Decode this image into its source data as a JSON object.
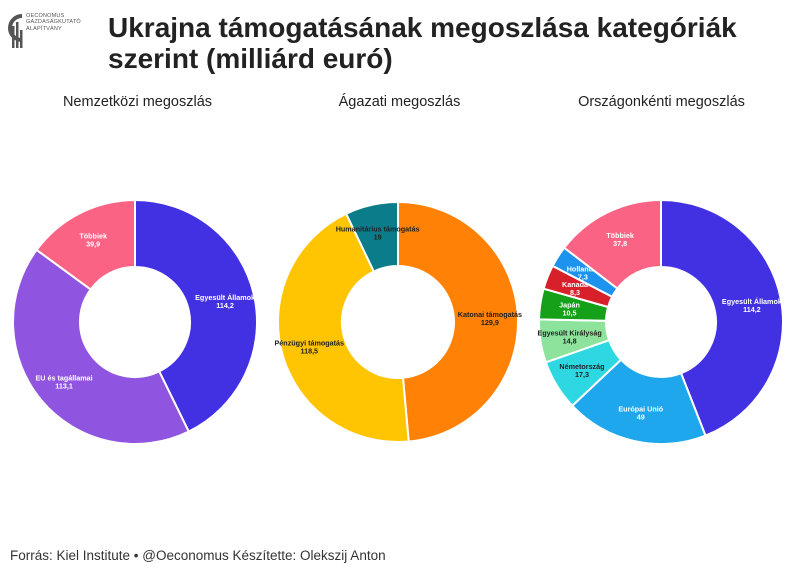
{
  "org": {
    "logo_lines": [
      "OECONOMUS",
      "GAZDASÁGKUTATÓ",
      "ALAPÍTVÁNY"
    ]
  },
  "title": "Ukrajna támogatásának megoszlása kategóriák szerint (milliárd euró)",
  "source": "Forrás: Kiel Institute • @Oeconomus Készítette: Olekszij Anton",
  "chart_data": [
    {
      "type": "pie",
      "title": "Nemzetközi megoszlás",
      "categories": [
        "Egyesült Államok",
        "EU és tagállamai",
        "Többiek"
      ],
      "values": [
        114.2,
        113.1,
        39.9
      ],
      "labels": [
        "114,2",
        "113,1",
        "39,9"
      ],
      "colors": [
        "#4230e3",
        "#9055e0",
        "#fb6385"
      ],
      "label_dark": [
        false,
        false,
        false
      ]
    },
    {
      "type": "pie",
      "title": "Ágazati megoszlás",
      "categories": [
        "Katonai támogatás",
        "Pénzügyi támogatás",
        "Humanitárius támogatás"
      ],
      "values": [
        129.9,
        118.5,
        19
      ],
      "labels": [
        "129,9",
        "118,5",
        "19"
      ],
      "colors": [
        "#ff8206",
        "#ffc503",
        "#0b7d8a"
      ],
      "label_dark": [
        true,
        true,
        true
      ]
    },
    {
      "type": "pie",
      "title": "Országonkénti megoszlás",
      "categories": [
        "Egyesült Államok",
        "Európai Unió",
        "Németország",
        "Egyesült Királyság",
        "Japán",
        "Kanada",
        "Hollandia",
        "Többiek"
      ],
      "values": [
        114.2,
        49,
        17.3,
        14.8,
        10.5,
        8.3,
        7.3,
        37.8
      ],
      "labels": [
        "114,2",
        "49",
        "17,3",
        "14,8",
        "10,5",
        "8,3",
        "7,3",
        "37,8"
      ],
      "colors": [
        "#4230e3",
        "#1ea7ec",
        "#2dd8e3",
        "#8de39b",
        "#15a019",
        "#d8202a",
        "#7b0c10",
        "#1e93ee",
        "#fb6385"
      ],
      "color_map": {
        "Egyesült Államok": "#4230e3",
        "Európai Unió": "#1ea7ec",
        "Németország": "#2dd8e3",
        "Egyesült Királyság": "#8de39b",
        "Japán": "#15a019",
        "Kanada": "#d8202a",
        "Hollandia": "#1e93ee",
        "Többiek": "#fb6385"
      },
      "label_dark": [
        false,
        false,
        true,
        true,
        false,
        false,
        false,
        false
      ]
    }
  ]
}
